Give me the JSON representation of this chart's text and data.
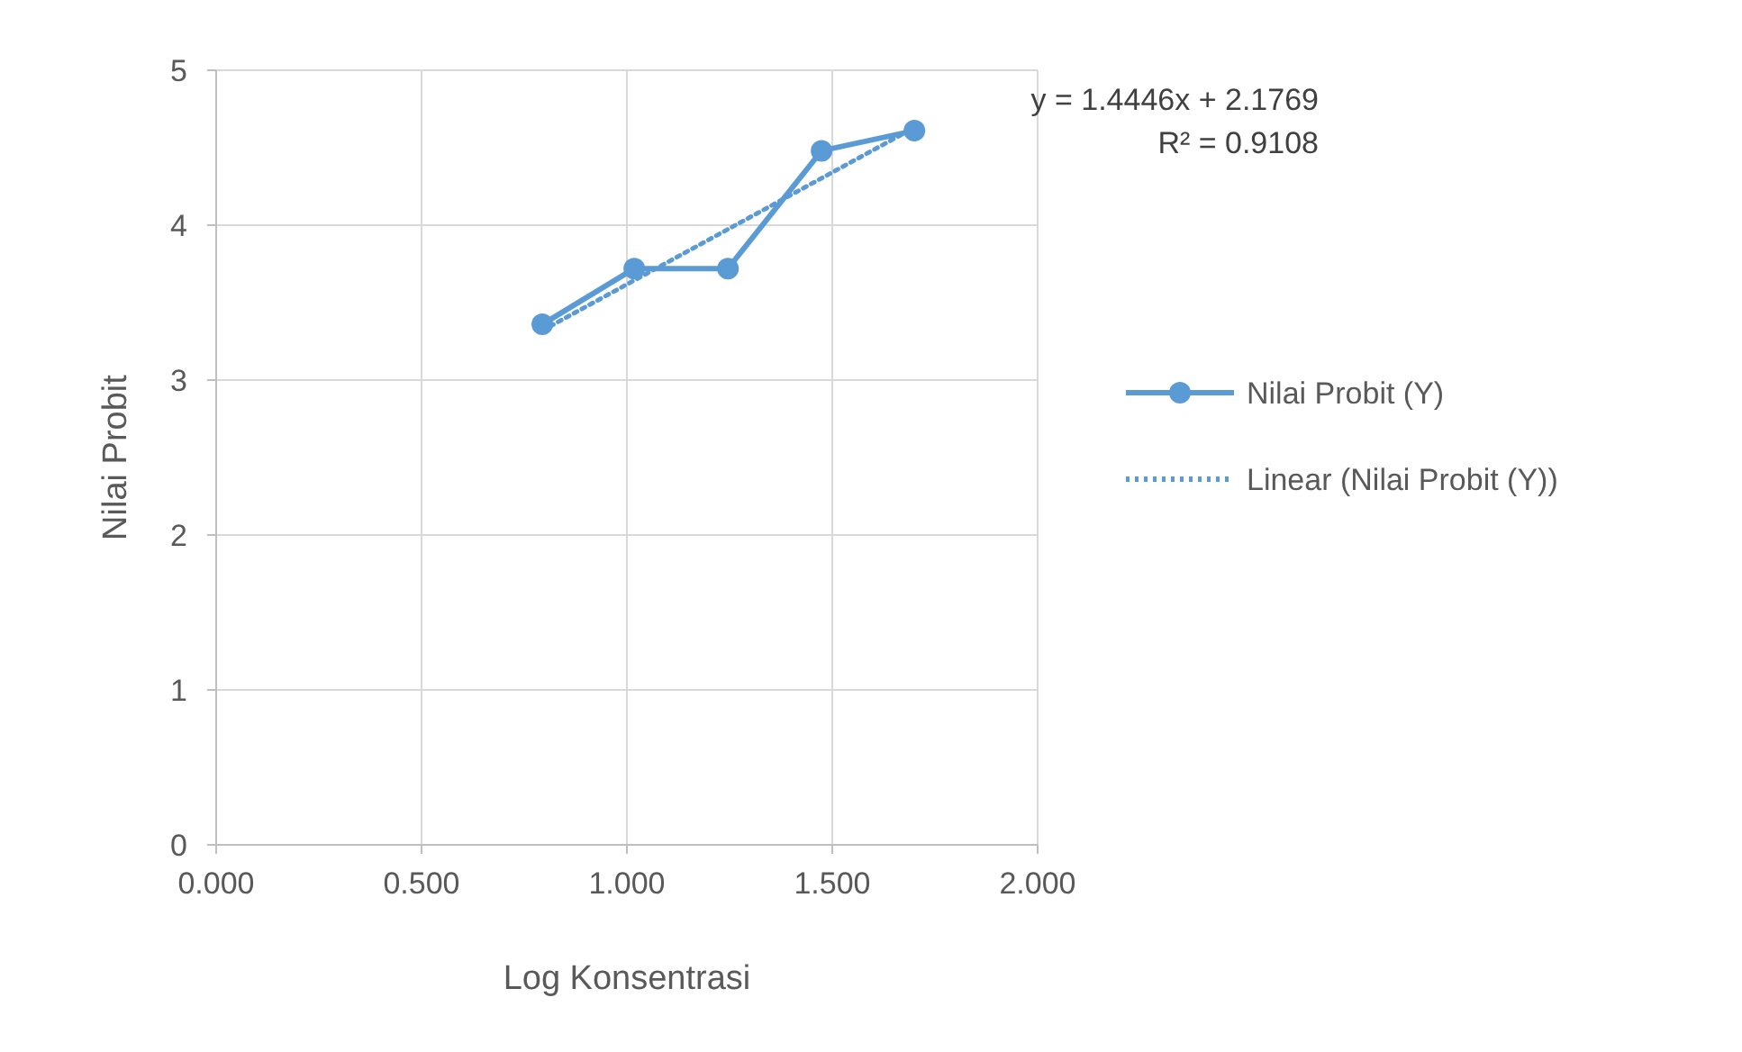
{
  "chart_data": {
    "type": "line",
    "xlabel": "Log Konsentrasi",
    "ylabel": "Nilai Probit",
    "xlim": [
      0,
      2
    ],
    "xticks": [
      {
        "value": 0,
        "label": "0.000"
      },
      {
        "value": 0.5,
        "label": "0.500"
      },
      {
        "value": 1,
        "label": "1.000"
      },
      {
        "value": 1.5,
        "label": "1.500"
      },
      {
        "value": 2,
        "label": "2.000"
      }
    ],
    "ylim": [
      0,
      5
    ],
    "yticks": [
      0,
      1,
      2,
      3,
      4,
      5
    ],
    "grid": true,
    "legend": "right",
    "annotations": [
      "y = 1.4446x + 2.1769",
      "R² = 0.9108"
    ],
    "series": [
      {
        "name": "Nilai Probit (Y)",
        "color": "#5b9bd5",
        "marker": "circle",
        "line_style": "solid",
        "x": [
          0.794,
          1.018,
          1.246,
          1.474,
          1.7
        ],
        "values": [
          3.36,
          3.72,
          3.72,
          4.48,
          4.61
        ]
      },
      {
        "name": "Linear (Nilai Probit (Y))",
        "color": "#5b9bd5",
        "marker": "none",
        "line_style": "dotted",
        "x": [
          0.794,
          1.7
        ],
        "values": [
          3.32,
          4.63
        ]
      }
    ]
  }
}
